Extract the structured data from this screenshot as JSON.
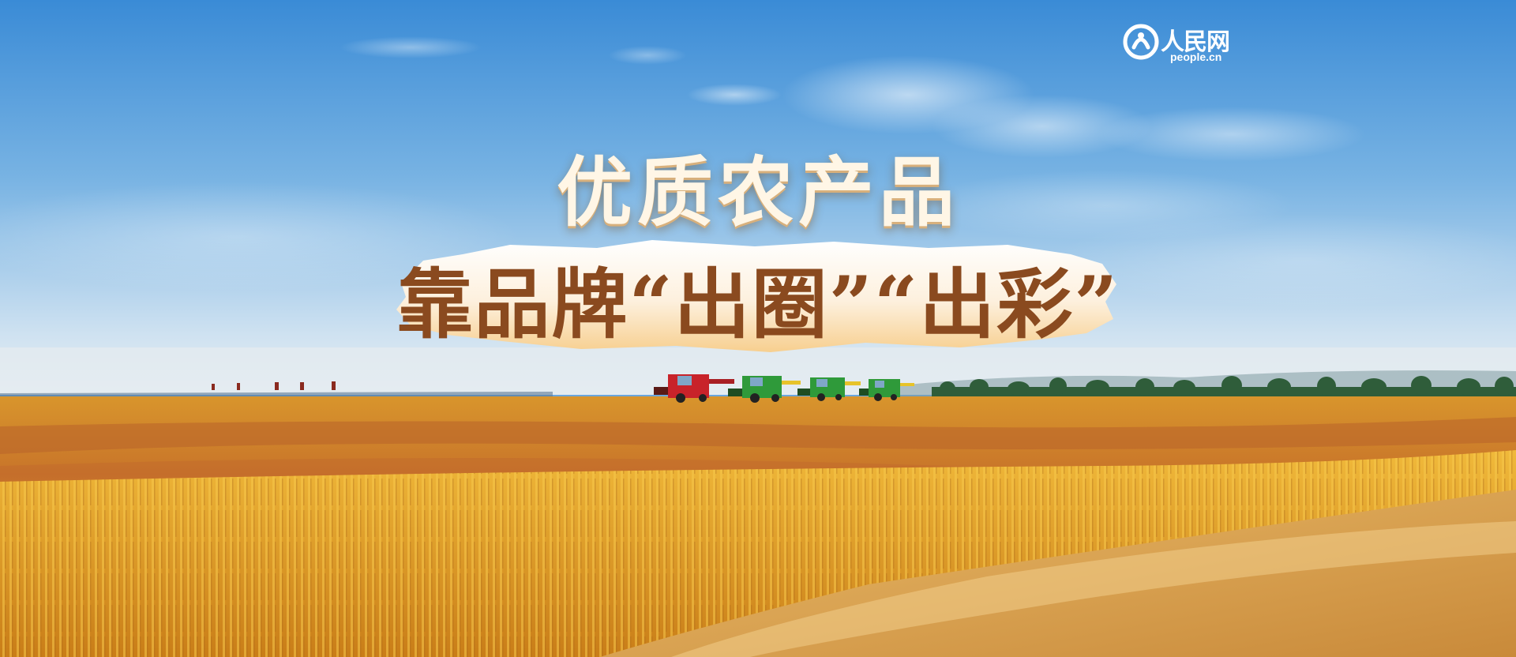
{
  "logo": {
    "name": "人民网",
    "domain": "people.cn"
  },
  "headline": {
    "line1": "优质农产品",
    "line2": "靠品牌“出圈”“出彩”"
  },
  "colors": {
    "sky_top": "#3f8fd8",
    "sky_bottom": "#dce9f2",
    "field": "#e3a126",
    "title_light": "#fff6e6",
    "title_dark": "#8a4a1f",
    "brush": "#fdf0dd",
    "harvester_red": "#c8232a",
    "harvester_green": "#2f9a3a"
  }
}
